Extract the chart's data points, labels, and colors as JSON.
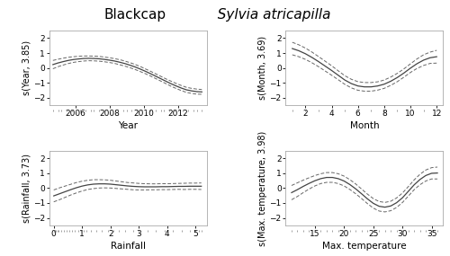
{
  "title_bold": "Blackcap",
  "title_italic": "  Sylvia atricapilla",
  "panels": [
    {
      "ylabel": "s(Year, 3.85)",
      "xlabel": "Year",
      "xlim": [
        2004.5,
        2013.7
      ],
      "ylim": [
        -2.5,
        2.5
      ],
      "xticks": [
        2006,
        2008,
        2010,
        2012
      ],
      "yticks": [
        -2,
        -1,
        0,
        1,
        2
      ],
      "curve_x": [
        2004.7,
        2005.0,
        2005.3,
        2005.6,
        2005.9,
        2006.2,
        2006.5,
        2006.8,
        2007.1,
        2007.4,
        2007.7,
        2008.0,
        2008.3,
        2008.6,
        2008.9,
        2009.2,
        2009.5,
        2009.8,
        2010.1,
        2010.4,
        2010.7,
        2011.0,
        2011.3,
        2011.6,
        2011.9,
        2012.2,
        2012.5,
        2012.8,
        2013.1,
        2013.4
      ],
      "curve_y": [
        0.22,
        0.33,
        0.42,
        0.5,
        0.56,
        0.6,
        0.63,
        0.64,
        0.63,
        0.61,
        0.57,
        0.52,
        0.46,
        0.38,
        0.29,
        0.18,
        0.06,
        -0.08,
        -0.23,
        -0.39,
        -0.56,
        -0.73,
        -0.9,
        -1.07,
        -1.22,
        -1.36,
        -1.48,
        -1.55,
        -1.6,
        -1.62
      ],
      "upper_y": [
        0.5,
        0.58,
        0.65,
        0.71,
        0.75,
        0.78,
        0.8,
        0.8,
        0.79,
        0.77,
        0.73,
        0.68,
        0.62,
        0.55,
        0.46,
        0.35,
        0.23,
        0.09,
        -0.07,
        -0.23,
        -0.4,
        -0.57,
        -0.74,
        -0.9,
        -1.05,
        -1.19,
        -1.31,
        -1.38,
        -1.43,
        -1.46
      ],
      "lower_y": [
        -0.06,
        0.08,
        0.19,
        0.29,
        0.37,
        0.42,
        0.46,
        0.48,
        0.47,
        0.45,
        0.41,
        0.36,
        0.3,
        0.21,
        0.12,
        0.01,
        -0.11,
        -0.25,
        -0.39,
        -0.55,
        -0.72,
        -0.89,
        -1.06,
        -1.24,
        -1.39,
        -1.53,
        -1.65,
        -1.72,
        -1.77,
        -1.78
      ],
      "rug_x": [
        2004.7,
        2005.0,
        2005.2,
        2005.5,
        2005.8,
        2006.0,
        2006.3,
        2006.6,
        2006.9,
        2007.1,
        2007.4,
        2007.7,
        2008.0,
        2008.2,
        2008.5,
        2008.8,
        2009.0,
        2009.3,
        2009.6,
        2009.9,
        2010.1,
        2010.4,
        2010.7,
        2011.0,
        2011.2,
        2011.5,
        2011.8,
        2012.0,
        2012.3,
        2012.6,
        2012.9,
        2013.1,
        2013.4
      ]
    },
    {
      "ylabel": "s(Month, 3.69)",
      "xlabel": "Month",
      "xlim": [
        0.5,
        12.5
      ],
      "ylim": [
        -2.5,
        2.5
      ],
      "xticks": [
        2,
        4,
        6,
        8,
        10,
        12
      ],
      "yticks": [
        -2,
        -1,
        0,
        1,
        2
      ],
      "curve_x": [
        1.0,
        1.5,
        2.0,
        2.5,
        3.0,
        3.5,
        4.0,
        4.5,
        5.0,
        5.5,
        6.0,
        6.5,
        7.0,
        7.5,
        8.0,
        8.5,
        9.0,
        9.5,
        10.0,
        10.5,
        11.0,
        11.5,
        12.0
      ],
      "curve_y": [
        1.3,
        1.15,
        0.95,
        0.7,
        0.42,
        0.12,
        -0.18,
        -0.5,
        -0.82,
        -1.06,
        -1.22,
        -1.28,
        -1.28,
        -1.22,
        -1.1,
        -0.9,
        -0.65,
        -0.35,
        -0.02,
        0.28,
        0.52,
        0.68,
        0.75
      ],
      "upper_y": [
        1.72,
        1.55,
        1.33,
        1.06,
        0.76,
        0.45,
        0.14,
        -0.2,
        -0.53,
        -0.77,
        -0.93,
        -0.99,
        -0.99,
        -0.94,
        -0.82,
        -0.62,
        -0.37,
        -0.07,
        0.27,
        0.6,
        0.88,
        1.06,
        1.18
      ],
      "lower_y": [
        0.88,
        0.75,
        0.57,
        0.34,
        0.08,
        -0.21,
        -0.5,
        -0.8,
        -1.11,
        -1.35,
        -1.51,
        -1.57,
        -1.57,
        -1.5,
        -1.38,
        -1.18,
        -0.93,
        -0.63,
        -0.31,
        -0.04,
        0.16,
        0.3,
        0.32
      ],
      "rug_x": [
        1,
        2,
        3,
        4,
        5,
        6,
        7,
        8,
        9,
        10,
        11,
        12
      ]
    },
    {
      "ylabel": "s(Rainfall, 3.73)",
      "xlabel": "Rainfall",
      "xlim": [
        -0.15,
        5.4
      ],
      "ylim": [
        -2.5,
        2.5
      ],
      "xticks": [
        0,
        1,
        2,
        3,
        4,
        5
      ],
      "yticks": [
        -2,
        -1,
        0,
        1,
        2
      ],
      "curve_x": [
        0.0,
        0.2,
        0.4,
        0.6,
        0.8,
        1.0,
        1.2,
        1.4,
        1.6,
        1.8,
        2.0,
        2.2,
        2.4,
        2.6,
        2.8,
        3.0,
        3.2,
        3.4,
        3.6,
        3.8,
        4.0,
        4.2,
        4.4,
        4.6,
        4.8,
        5.0,
        5.2
      ],
      "curve_y": [
        -0.52,
        -0.38,
        -0.24,
        -0.1,
        0.03,
        0.14,
        0.22,
        0.27,
        0.29,
        0.29,
        0.27,
        0.23,
        0.19,
        0.15,
        0.12,
        0.1,
        0.09,
        0.09,
        0.09,
        0.1,
        0.1,
        0.11,
        0.12,
        0.12,
        0.13,
        0.13,
        0.13
      ],
      "upper_y": [
        -0.12,
        0.02,
        0.14,
        0.26,
        0.38,
        0.47,
        0.53,
        0.57,
        0.57,
        0.56,
        0.53,
        0.48,
        0.43,
        0.38,
        0.35,
        0.32,
        0.3,
        0.29,
        0.29,
        0.3,
        0.3,
        0.31,
        0.32,
        0.33,
        0.34,
        0.34,
        0.35
      ],
      "lower_y": [
        -0.92,
        -0.78,
        -0.62,
        -0.46,
        -0.32,
        -0.19,
        -0.09,
        -0.03,
        0.01,
        0.02,
        0.01,
        -0.02,
        -0.05,
        -0.08,
        -0.11,
        -0.12,
        -0.12,
        -0.11,
        -0.11,
        -0.1,
        -0.1,
        -0.09,
        -0.08,
        -0.09,
        -0.08,
        -0.08,
        -0.09
      ],
      "rug_x": [
        0.0,
        0.02,
        0.05,
        0.08,
        0.12,
        0.18,
        0.25,
        0.35,
        0.45,
        0.55,
        0.65,
        0.75,
        0.85,
        0.95,
        1.05,
        1.15,
        1.3,
        1.5,
        1.7,
        1.9,
        2.1,
        2.3,
        2.5,
        2.8,
        3.0,
        3.3,
        3.6,
        3.9,
        4.2,
        4.5,
        4.8,
        5.0,
        5.1,
        5.2
      ]
    },
    {
      "ylabel": "s(Max. temperature, 3.98)",
      "xlabel": "Max. temperature",
      "xlim": [
        10,
        37
      ],
      "ylim": [
        -2.5,
        2.5
      ],
      "xticks": [
        15,
        20,
        25,
        30,
        35
      ],
      "yticks": [
        -2,
        -1,
        0,
        1,
        2
      ],
      "curve_x": [
        11,
        12,
        13,
        14,
        15,
        16,
        17,
        18,
        19,
        20,
        21,
        22,
        23,
        24,
        25,
        26,
        27,
        28,
        29,
        30,
        31,
        32,
        33,
        34,
        35,
        36
      ],
      "curve_y": [
        -0.3,
        -0.1,
        0.12,
        0.32,
        0.5,
        0.64,
        0.72,
        0.72,
        0.64,
        0.48,
        0.24,
        -0.05,
        -0.38,
        -0.72,
        -1.02,
        -1.22,
        -1.28,
        -1.2,
        -0.98,
        -0.65,
        -0.22,
        0.22,
        0.58,
        0.85,
        1.0,
        1.02
      ],
      "upper_y": [
        0.18,
        0.36,
        0.54,
        0.7,
        0.85,
        0.97,
        1.05,
        1.05,
        0.97,
        0.81,
        0.57,
        0.28,
        -0.06,
        -0.4,
        -0.7,
        -0.9,
        -0.96,
        -0.88,
        -0.66,
        -0.33,
        0.1,
        0.55,
        0.93,
        1.22,
        1.38,
        1.42
      ],
      "lower_y": [
        -0.78,
        -0.56,
        -0.3,
        -0.06,
        0.15,
        0.31,
        0.39,
        0.39,
        0.31,
        0.15,
        -0.09,
        -0.38,
        -0.7,
        -1.04,
        -1.34,
        -1.54,
        -1.6,
        -1.52,
        -1.3,
        -0.97,
        -0.54,
        -0.11,
        0.23,
        0.48,
        0.62,
        0.62
      ],
      "rug_x": [
        11,
        12,
        13,
        14,
        15,
        16,
        17,
        18,
        19,
        20,
        21,
        22,
        23,
        24,
        25,
        26,
        27,
        28,
        29,
        30,
        31,
        32,
        33,
        34,
        35,
        36
      ]
    }
  ],
  "line_color": "#444444",
  "ci_color": "#666666",
  "rug_color": "#777777",
  "bg_color": "#ffffff",
  "panel_bg": "#ffffff",
  "title_fontsize": 11,
  "axis_fontsize": 6.5,
  "label_fontsize": 7.5
}
